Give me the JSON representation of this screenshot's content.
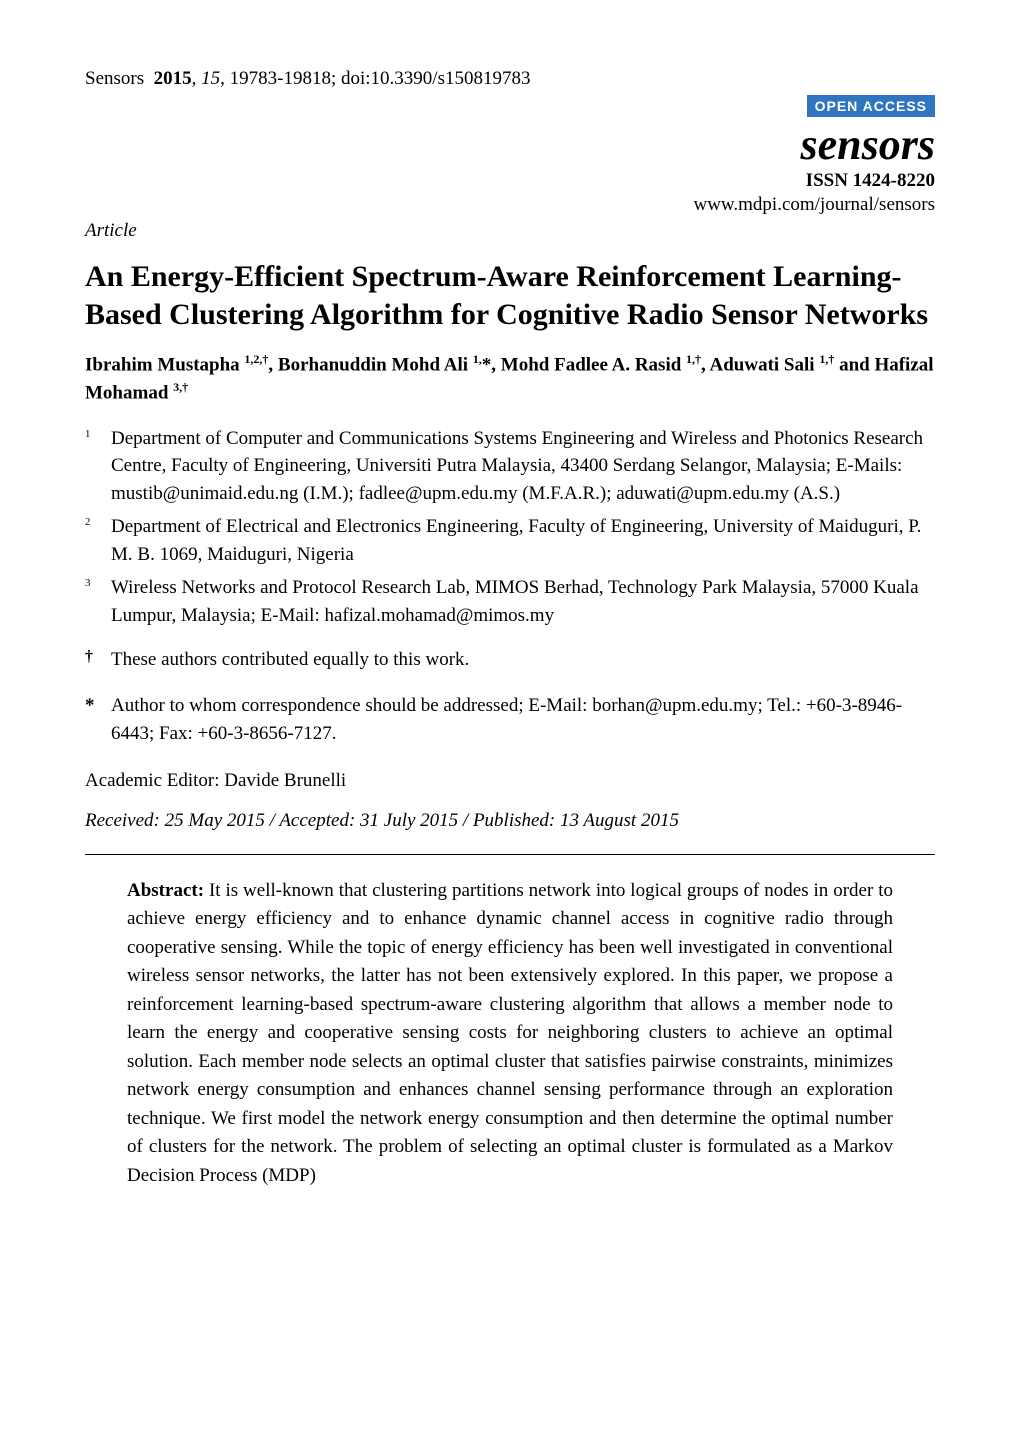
{
  "header": {
    "journal_abbrev": "Sensors",
    "year": "2015",
    "volume": "15",
    "pages": "19783-19818",
    "doi_label": "doi:",
    "doi": "10.3390/s150819783"
  },
  "open_access_label": "OPEN ACCESS",
  "journal": {
    "name": "sensors",
    "issn_label": "ISSN 1424-8220",
    "url": "www.mdpi.com/journal/sensors"
  },
  "article_type": "Article",
  "title": "An Energy-Efficient Spectrum-Aware Reinforcement Learning-Based Clustering Algorithm for Cognitive Radio Sensor Networks",
  "authors_line1": "Ibrahim Mustapha ",
  "authors_sup1": "1,2,†",
  "authors_sep1": ", Borhanuddin Mohd Ali ",
  "authors_sup2": "1,",
  "authors_star": "*",
  "authors_sep2": ", Mohd Fadlee A. Rasid ",
  "authors_sup3": "1,†",
  "authors_sep3": ", Aduwati Sali ",
  "authors_sup4": "1,†",
  "authors_line2_prefix": "and Hafizal Mohamad ",
  "authors_sup5": "3,†",
  "affiliations": [
    {
      "marker": "1",
      "text": "Department of Computer and Communications Systems Engineering and Wireless and Photonics Research Centre, Faculty of Engineering, Universiti Putra Malaysia, 43400 Serdang Selangor, Malaysia; E-Mails: mustib@unimaid.edu.ng (I.M.); fadlee@upm.edu.my (M.F.A.R.); aduwati@upm.edu.my (A.S.)"
    },
    {
      "marker": "2",
      "text": "Department of Electrical and Electronics Engineering, Faculty of Engineering, University of Maiduguri, P. M. B. 1069, Maiduguri, Nigeria"
    },
    {
      "marker": "3",
      "text": "Wireless Networks and Protocol Research Lab, MIMOS Berhad, Technology Park Malaysia, 57000 Kuala Lumpur, Malaysia; E-Mail: hafizal.mohamad@mimos.my"
    }
  ],
  "contrib_marker": "†",
  "contrib_text": "These authors contributed equally to this work.",
  "corr_marker": "*",
  "corr_text": "Author to whom correspondence should be addressed; E-Mail: borhan@upm.edu.my; Tel.: +60-3-8946-6443; Fax: +60-3-8656-7127.",
  "editor_label": "Academic Editor: ",
  "editor_name": "Davide Brunelli",
  "dates": "Received: 25 May 2015 / Accepted: 31 July 2015 / Published: 13 August 2015",
  "abstract_label": "Abstract:",
  "abstract_text": " It is well-known that clustering partitions network into logical groups of nodes in order to achieve energy efficiency and to enhance dynamic channel access in cognitive radio through cooperative sensing. While the topic of energy efficiency has been well investigated in conventional wireless sensor networks, the latter has not been extensively explored. In this paper, we propose a reinforcement learning-based spectrum-aware clustering algorithm that allows a member node to learn the energy and cooperative sensing costs for neighboring clusters to achieve an optimal solution. Each member node selects an optimal cluster that satisfies pairwise constraints, minimizes network energy consumption and enhances channel sensing performance through an exploration technique. We first model the network energy consumption and then determine the optimal number of clusters for the network. The problem of selecting an optimal cluster is formulated as a Markov Decision Process (MDP)",
  "colors": {
    "open_access_bg": "#2f75c0",
    "open_access_fg": "#ffffff",
    "text": "#000000",
    "background": "#ffffff"
  }
}
